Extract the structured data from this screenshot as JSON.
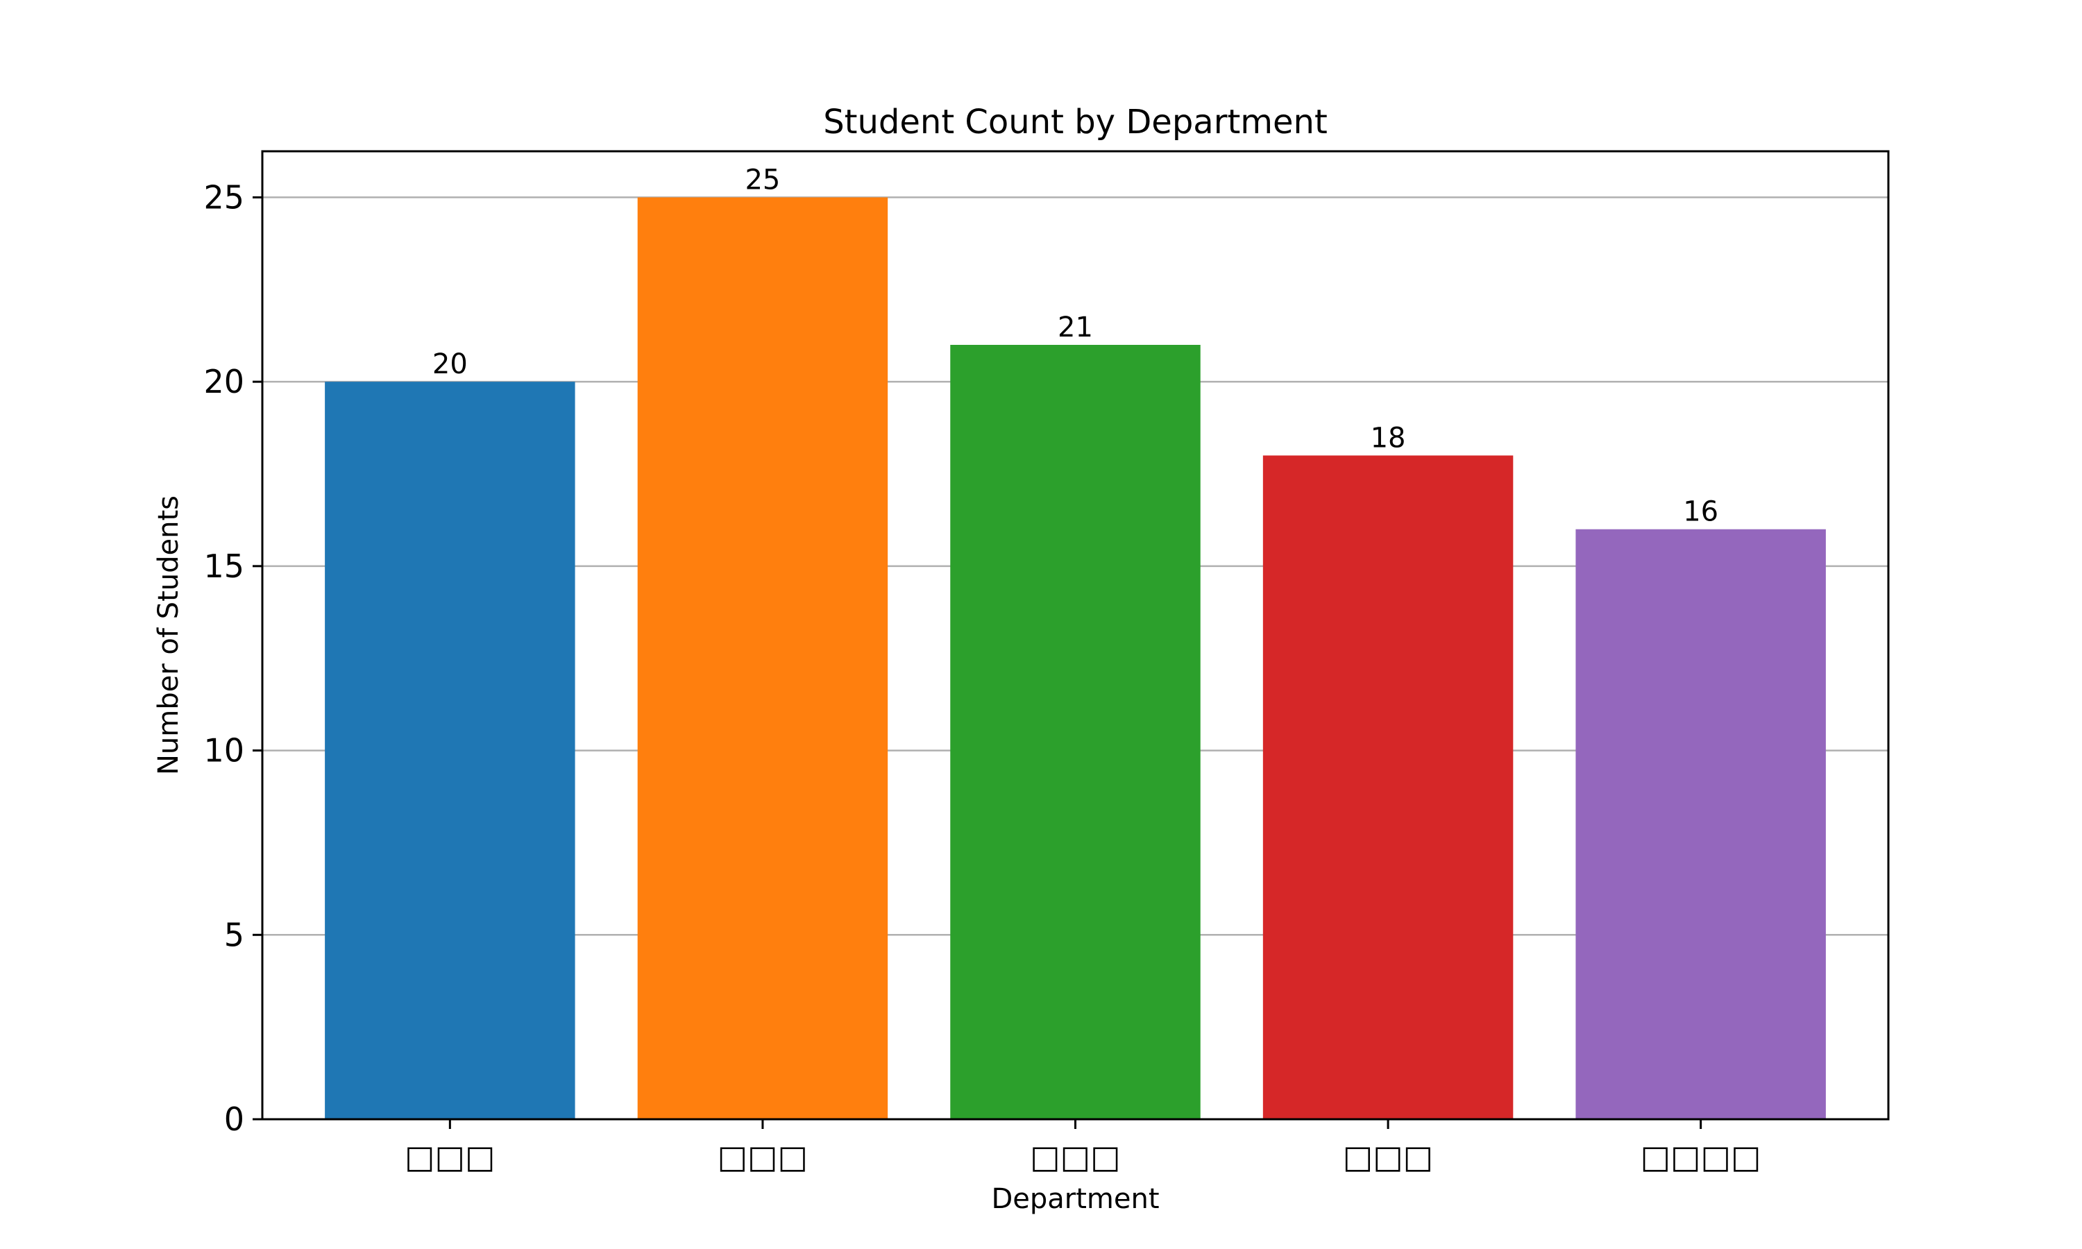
{
  "chart_data": {
    "type": "bar",
    "title": "Student Count by Department",
    "xlabel": "Department",
    "ylabel": "Number of Students",
    "categories": [
      "□□□",
      "□□□",
      "□□□",
      "□□□",
      "□□□□"
    ],
    "values": [
      20,
      25,
      21,
      18,
      16
    ],
    "value_labels": [
      "20",
      "25",
      "21",
      "18",
      "16"
    ],
    "ylim": [
      0,
      26.25
    ],
    "yticks": [
      0,
      5,
      10,
      15,
      20,
      25
    ],
    "ytick_labels": [
      "0",
      "5",
      "10",
      "15",
      "20",
      "25"
    ],
    "grid": "y",
    "legend": "none",
    "colors": [
      "#1f77b4",
      "#ff7f0e",
      "#2ca02c",
      "#d62728",
      "#9467bd"
    ]
  }
}
